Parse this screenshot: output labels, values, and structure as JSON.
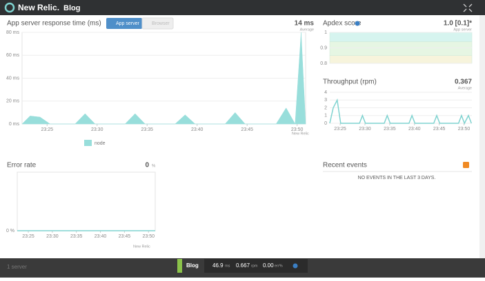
{
  "header": {
    "brand": "New Relic.",
    "app": "Blog"
  },
  "response_time": {
    "title": "App server response time (ms)",
    "tabs": [
      "App server",
      "Browser"
    ],
    "summary": "14 ms",
    "summary_label": "Average",
    "ylim": [
      0,
      80
    ],
    "yticks": [
      {
        "value": 0,
        "label": "0 ms"
      },
      {
        "value": 20,
        "label": "20 ms"
      },
      {
        "value": 40,
        "label": "40 ms"
      },
      {
        "value": 60,
        "label": "60 ms"
      },
      {
        "value": 80,
        "label": "80 ms"
      }
    ],
    "xlim": [
      22.5,
      50.85
    ],
    "xticks": [
      {
        "value": 25,
        "label": "23:25"
      },
      {
        "value": 30,
        "label": "23:30"
      },
      {
        "value": 35,
        "label": "23:35"
      },
      {
        "value": 40,
        "label": "23:40"
      },
      {
        "value": 45,
        "label": "23:45"
      },
      {
        "value": 50,
        "label": "23:50"
      }
    ],
    "x": [
      22.5,
      23.3,
      24.3,
      25.3,
      27.8,
      28.8,
      29.8,
      32.8,
      33.8,
      34.8,
      37.8,
      38.8,
      39.8,
      42.8,
      43.8,
      44.8,
      47.9,
      48.9,
      49.8,
      50.4,
      50.85
    ],
    "series": [
      {
        "name": "node",
        "color": "#98dedb",
        "values": [
          0,
          7,
          6,
          0,
          0,
          9,
          0,
          0,
          9,
          0,
          0,
          8,
          0,
          0,
          10,
          0,
          0,
          14,
          0,
          80,
          0
        ]
      }
    ],
    "watermark": "New Relic"
  },
  "apdex": {
    "title": "Apdex score",
    "summary": "1.0 [0.1]*",
    "summary_label": "App server",
    "ylim": [
      0.8,
      1
    ],
    "yticks": [
      0.8,
      0.9,
      1
    ],
    "bands": [
      {
        "from": 1,
        "to": 0.94,
        "color": "#d6f4ef"
      },
      {
        "from": 0.94,
        "to": 0.85,
        "color": "#e6f6e3"
      },
      {
        "from": 0.85,
        "to": 0.8,
        "color": "#f7f4dc"
      }
    ]
  },
  "throughput": {
    "title": "Throughput (rpm)",
    "summary": "0.367",
    "summary_label": "Average",
    "ylim": [
      0,
      4
    ],
    "yticks": [
      0,
      1,
      2,
      3,
      4
    ],
    "xlim": [
      22.9,
      51.6
    ],
    "xticks": [
      {
        "value": 25,
        "label": "23:25"
      },
      {
        "value": 30,
        "label": "23:30"
      },
      {
        "value": 35,
        "label": "23:35"
      },
      {
        "value": 40,
        "label": "23:40"
      },
      {
        "value": 45,
        "label": "23:45"
      },
      {
        "value": 50,
        "label": "23:50"
      }
    ],
    "x": [
      22.9,
      23.6,
      24.4,
      25.1,
      28.9,
      29.5,
      30.1,
      33.9,
      34.5,
      35.1,
      38.9,
      39.5,
      40.1,
      43.9,
      44.5,
      45.1,
      48.9,
      49.5,
      50.1,
      50.9,
      51.5
    ],
    "color": "#7fd3d0",
    "values": [
      0,
      2,
      3,
      0,
      0,
      1,
      0,
      0,
      1,
      0,
      0,
      1,
      0,
      0,
      1,
      0,
      0,
      1,
      0,
      1,
      0
    ]
  },
  "error_rate": {
    "title": "Error rate",
    "summary": "0",
    "summary_unit": "%",
    "ylim": [
      0,
      1
    ],
    "yticks": [
      {
        "value": 0,
        "label": "0 %"
      }
    ],
    "xlim": [
      22.7,
      51.4
    ],
    "xticks": [
      {
        "value": 25,
        "label": "23:25"
      },
      {
        "value": 30,
        "label": "23:30"
      },
      {
        "value": 35,
        "label": "23:35"
      },
      {
        "value": 40,
        "label": "23:40"
      },
      {
        "value": 45,
        "label": "23:45"
      },
      {
        "value": 50,
        "label": "23:50"
      }
    ],
    "x": [
      22.7,
      51.4
    ],
    "color": "#7fd3d0",
    "values": [
      0,
      0
    ],
    "watermark": "New Relic"
  },
  "recent_events": {
    "title": "Recent events",
    "message": "NO EVENTS IN THE LAST 3 DAYS."
  },
  "footer": {
    "servers": "1 server",
    "app": "Blog",
    "response": "46.9",
    "response_unit": "ms",
    "throughput": "0.667",
    "throughput_unit": "rpm",
    "errors": "0.00",
    "errors_unit": "err%"
  }
}
